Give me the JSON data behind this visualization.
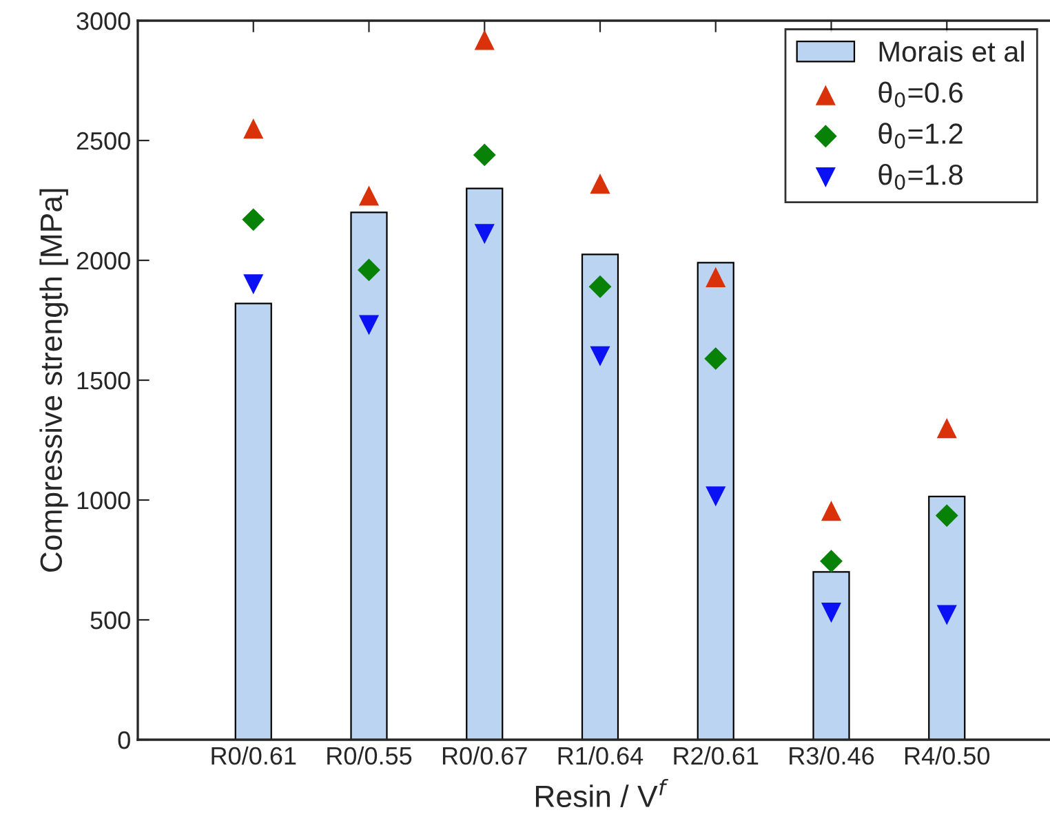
{
  "chart_data": {
    "type": "bar",
    "xlabel": "Resin / V$^{f}$",
    "ylabel": "Compressive strength [MPa]",
    "categories": [
      "R0/0.61",
      "R0/0.55",
      "R0/0.67",
      "R1/0.64",
      "R2/0.61",
      "R3/0.46",
      "R4/0.50"
    ],
    "series": [
      {
        "name": "Morais et al",
        "color": "#bad4f1",
        "values": [
          1820,
          2200,
          2300,
          2025,
          1990,
          700,
          1015
        ]
      },
      {
        "name": "θ$_{0}$=0.6",
        "type": "scatter",
        "marker": "triangle",
        "color": "#d9320b",
        "values": [
          2550,
          2270,
          2920,
          2320,
          1930,
          955,
          1300
        ]
      },
      {
        "name": "θ$_{0}$=1.2",
        "type": "scatter",
        "marker": "diamond",
        "color": "#078207",
        "values": [
          2170,
          1960,
          2440,
          1890,
          1590,
          745,
          935
        ]
      },
      {
        "name": "θ$_{0}$=1.8",
        "type": "scatter",
        "marker": "triangle_down",
        "color": "#0a12f5",
        "values": [
          1900,
          1730,
          2110,
          1600,
          1015,
          530,
          520
        ]
      }
    ],
    "ylim": [
      0,
      3000
    ],
    "yticks": [
      0,
      500,
      1000,
      1500,
      2000,
      2500,
      3000
    ],
    "grid": false,
    "legend": "top right"
  }
}
